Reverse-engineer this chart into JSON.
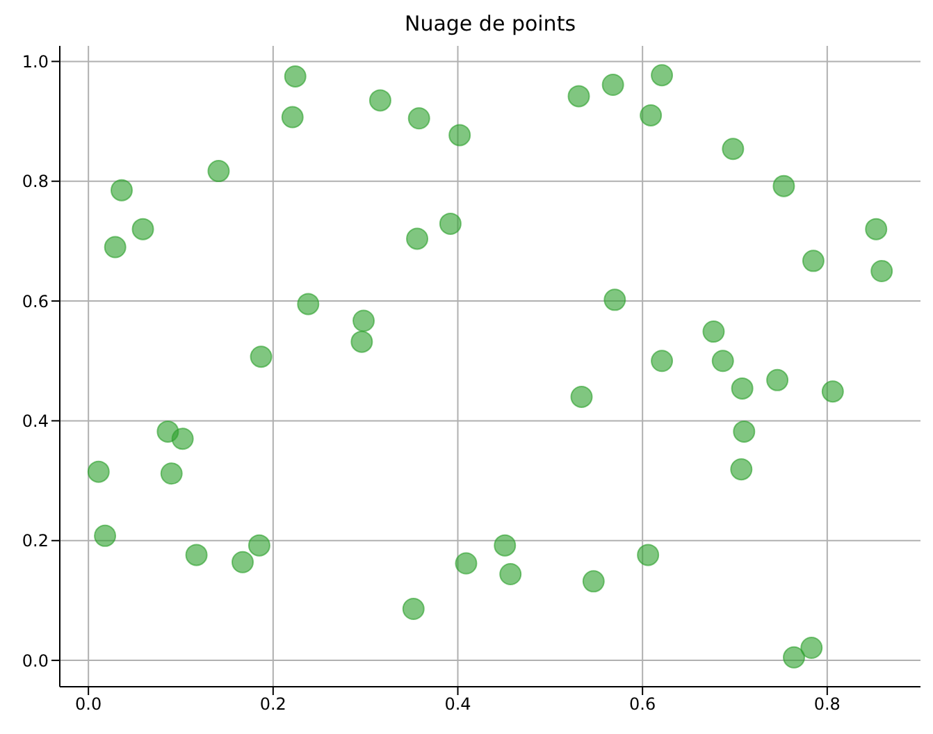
{
  "chart_data": {
    "type": "scatter",
    "title": "Nuage de points",
    "x": [
      0.011,
      0.018,
      0.029,
      0.036,
      0.059,
      0.086,
      0.09,
      0.102,
      0.117,
      0.141,
      0.167,
      0.185,
      0.187,
      0.221,
      0.224,
      0.238,
      0.296,
      0.298,
      0.316,
      0.352,
      0.356,
      0.358,
      0.392,
      0.402,
      0.409,
      0.451,
      0.457,
      0.531,
      0.534,
      0.547,
      0.568,
      0.57,
      0.606,
      0.609,
      0.621,
      0.621,
      0.677,
      0.687,
      0.698,
      0.707,
      0.708,
      0.71,
      0.746,
      0.753,
      0.764,
      0.783,
      0.785,
      0.806,
      0.853,
      0.859
    ],
    "series": [
      {
        "color": "#2ca02c",
        "values": [
          0.315,
          0.208,
          0.69,
          0.785,
          0.72,
          0.382,
          0.312,
          0.37,
          0.176,
          0.817,
          0.164,
          0.192,
          0.507,
          0.907,
          0.975,
          0.595,
          0.532,
          0.567,
          0.935,
          0.086,
          0.704,
          0.905,
          0.729,
          0.877,
          0.162,
          0.192,
          0.144,
          0.942,
          0.44,
          0.132,
          0.961,
          0.602,
          0.176,
          0.91,
          0.5,
          0.977,
          0.549,
          0.5,
          0.854,
          0.319,
          0.454,
          0.382,
          0.468,
          0.792,
          0.005,
          0.021,
          0.667,
          0.449,
          0.72,
          0.65
        ]
      }
    ],
    "xlim": [
      -0.031,
      0.901
    ],
    "xticks": [
      {
        "value": 0,
        "label": "0.0"
      },
      0.2,
      0.4,
      0.6,
      0.8
    ],
    "ylim": [
      -0.044,
      1.026
    ],
    "yticks": [
      {
        "value": 0,
        "label": "0.0"
      },
      0.2,
      0.4,
      0.6,
      0.8,
      {
        "value": 1,
        "label": "1.0"
      }
    ],
    "grid": true,
    "marker": "circle"
  }
}
